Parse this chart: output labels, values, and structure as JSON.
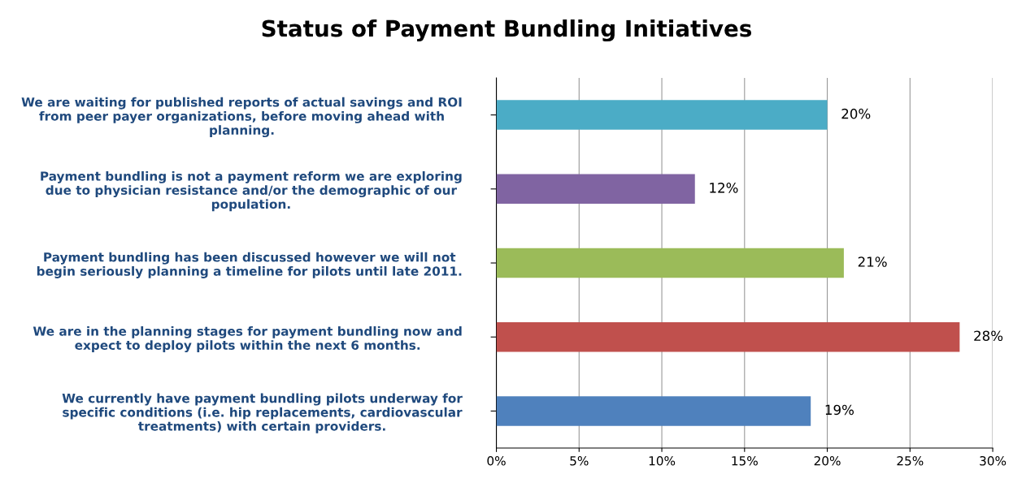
{
  "chart_data": {
    "type": "bar",
    "orientation": "horizontal",
    "title": "Status of Payment Bundling Initiatives",
    "categories": [
      "We are waiting for published reports of actual savings and ROI\nfrom peer payer organizations, before moving ahead with\nplanning.",
      "Payment bundling is not a payment reform we are exploring\ndue to physician resistance and/or the demographic of our\npopulation.",
      "Payment bundling has been discussed however we will not\nbegin seriously planning a timeline for pilots until late 2011.",
      "We are in the planning stages for payment bundling now and\nexpect to deploy pilots within the next 6 months.",
      "We currently have payment bundling pilots underway for\nspecific conditions (i.e. hip replacements, cardiovascular\ntreatments) with certain providers."
    ],
    "values": [
      20,
      12,
      21,
      28,
      19
    ],
    "colors": [
      "#4bacc6",
      "#8064a2",
      "#9bbb59",
      "#c0504d",
      "#4f81bd"
    ],
    "value_labels": [
      "20%",
      "12%",
      "21%",
      "28%",
      "19%"
    ],
    "xlim": [
      0,
      30
    ],
    "xticks": [
      {
        "value": 0,
        "label": "0%"
      },
      {
        "value": 5,
        "label": "5%"
      },
      {
        "value": 10,
        "label": "10%"
      },
      {
        "value": 15,
        "label": "15%"
      },
      {
        "value": 20,
        "label": "20%"
      },
      {
        "value": 25,
        "label": "25%"
      },
      {
        "value": 30,
        "label": "30%"
      }
    ],
    "grid": "x"
  }
}
